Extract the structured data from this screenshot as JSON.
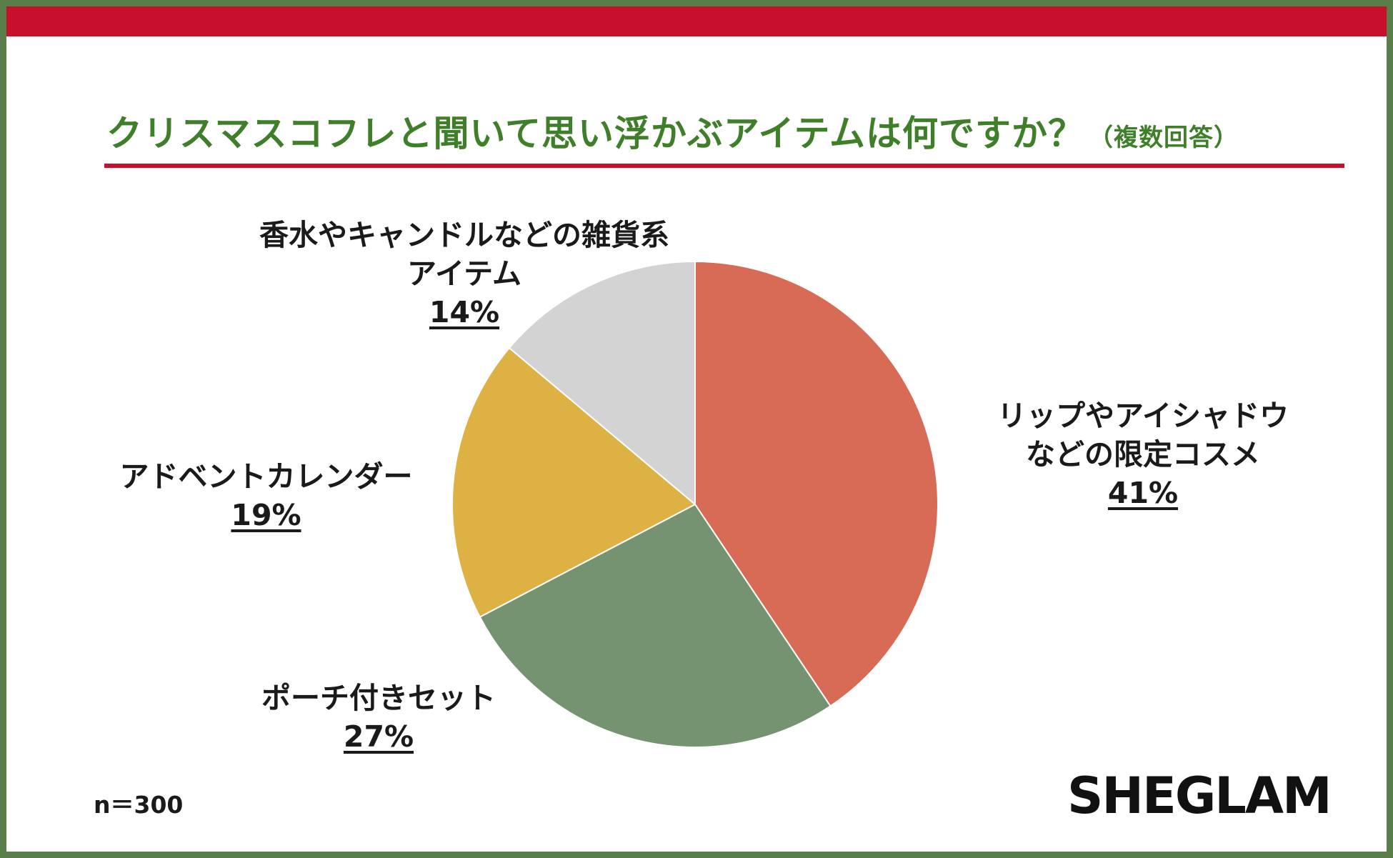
{
  "title": "クリスマスコフレと聞いて思い浮かぶアイテムは何ですか？",
  "subtitle": "（複数回答）",
  "note": "n＝300",
  "brand": "SHEGLAM",
  "colors": {
    "frame": "#5a7e4a",
    "accent_bar": "#c8102e",
    "title": "#3f7f2a"
  },
  "chart_data": {
    "type": "pie",
    "start_angle_deg": 0,
    "direction": "clockwise",
    "slices": [
      {
        "label_line1": "リップやアイシャドウ",
        "label_line2": "などの限定コスメ",
        "value": 41,
        "value_label": "41%",
        "color": "#d86b55"
      },
      {
        "label_line1": "ポーチ付きセット",
        "label_line2": "",
        "value": 27,
        "value_label": "27%",
        "color": "#759271"
      },
      {
        "label_line1": "アドベントカレンダー",
        "label_line2": "",
        "value": 19,
        "value_label": "19%",
        "color": "#ddb144"
      },
      {
        "label_line1": "香水やキャンドルなどの雑貨系",
        "label_line2": "アイテム",
        "value": 14,
        "value_label": "14%",
        "color": "#d3d3d3"
      }
    ]
  }
}
